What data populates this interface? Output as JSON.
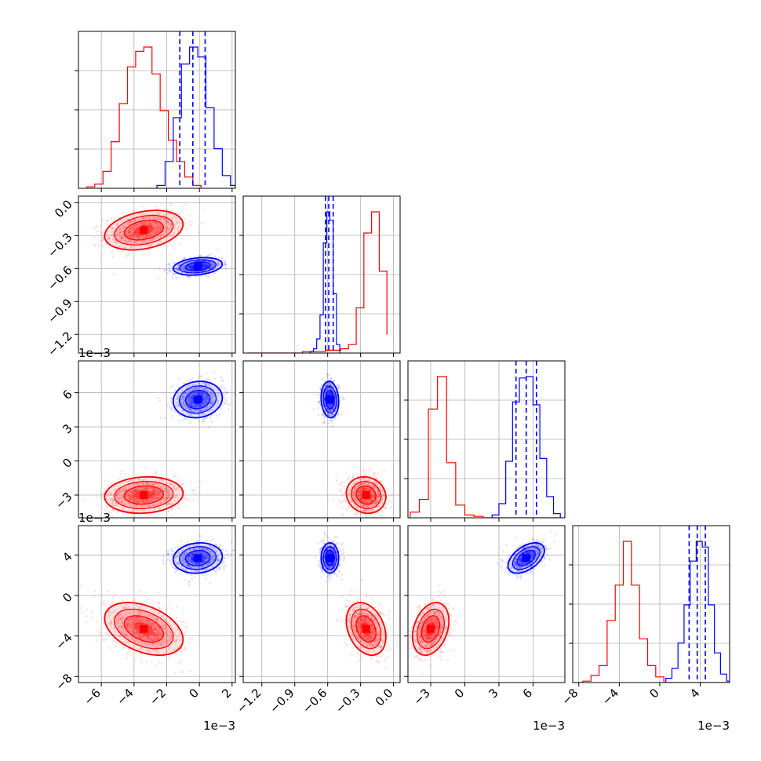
{
  "chart_data": {
    "type": "corner",
    "colors": {
      "series_a": "#ff0000",
      "series_b": "#0000ff"
    },
    "grid": true,
    "parameters": [
      {
        "index": 0,
        "range": [
          -7.4,
          2.2
        ],
        "scale_factor": "1e-3",
        "ticks": [
          -6,
          -4,
          -2,
          0,
          2
        ],
        "tick_labels": [
          "−6",
          "−4",
          "−2",
          "0",
          "2"
        ]
      },
      {
        "index": 1,
        "range": [
          -1.37,
          0.06
        ],
        "scale_factor": "1e-3",
        "ticks": [
          -1.2,
          -0.9,
          -0.6,
          -0.3,
          0.0
        ],
        "tick_labels": [
          "−1.2",
          "−0.9",
          "−0.6",
          "−0.3",
          "0.0"
        ]
      },
      {
        "index": 2,
        "range": [
          -5.0,
          8.8
        ],
        "scale_factor": "1e-3",
        "ticks": [
          -3,
          0,
          3,
          6
        ],
        "tick_labels": [
          "−3",
          "0",
          "3",
          "6"
        ]
      },
      {
        "index": 3,
        "range": [
          -8.6,
          6.9
        ],
        "scale_factor": "1e-3",
        "ticks": [
          -8,
          -4,
          0,
          4
        ],
        "tick_labels": [
          "−8",
          "−4",
          "0",
          "4"
        ]
      }
    ],
    "offset_labels": [
      "1e−3",
      "1e−3",
      "1e−3",
      "1e−3",
      "1e−3",
      "1e−3"
    ],
    "series": [
      {
        "color": "#ff0000",
        "means": [
          -3.4,
          -0.25,
          -3.0,
          -3.3
        ],
        "sigmas": [
          1.2,
          0.09,
          0.8,
          1.3
        ],
        "correlations": {
          "1_0": 0.3,
          "2_0": 0.1,
          "2_1": -0.1,
          "3_0": -0.4,
          "3_1": -0.3,
          "3_2": 0.3
        },
        "histograms": [
          {
            "edges": [
              -6.9,
              -6.4,
              -5.9,
              -5.4,
              -4.9,
              -4.4,
              -3.9,
              -3.4,
              -2.9,
              -2.4,
              -1.9,
              -1.4,
              -0.9,
              -0.4,
              0.1
            ],
            "counts": [
              0.01,
              0.03,
              0.12,
              0.33,
              0.6,
              0.86,
              0.97,
              1.0,
              0.81,
              0.55,
              0.34,
              0.19,
              0.08,
              0.02
            ]
          },
          {
            "edges": [
              -1.32,
              -1.25,
              -1.18,
              -1.11,
              -1.04,
              -0.97,
              -0.9,
              -0.83,
              -0.76,
              -0.69,
              -0.62,
              -0.55,
              -0.48,
              -0.41,
              -0.34,
              -0.27,
              -0.2,
              -0.13,
              -0.06
            ],
            "counts": [
              0,
              0,
              0,
              0,
              0,
              0,
              0,
              0.01,
              0.01,
              0.01,
              0.02,
              0.02,
              0.03,
              0.06,
              0.32,
              0.85,
              1.0,
              0.58,
              0.13
            ]
          },
          {
            "edges": [
              -4.8,
              -4.0,
              -3.2,
              -2.4,
              -1.6,
              -0.8,
              0.0,
              0.8,
              1.6,
              2.4,
              3.2,
              4.0,
              4.8,
              5.6,
              6.4,
              7.2,
              8.0,
              8.8
            ],
            "counts": [
              0.04,
              0.13,
              0.77,
              1.0,
              0.39,
              0.09,
              0.02,
              0.01,
              0,
              0,
              0,
              0,
              0,
              0,
              0,
              0,
              0
            ]
          },
          {
            "edges": [
              -8.4,
              -7.6,
              -6.8,
              -6.0,
              -5.2,
              -4.4,
              -3.6,
              -2.8,
              -2.0,
              -1.2,
              -0.4,
              0.4,
              1.2,
              2.0,
              2.8,
              3.6,
              4.4,
              5.2,
              6.0,
              6.8
            ],
            "counts": [
              0,
              0.01,
              0.05,
              0.12,
              0.44,
              0.69,
              1.0,
              0.69,
              0.31,
              0.12,
              0.04,
              0,
              0,
              0,
              0,
              0,
              0,
              0,
              0
            ]
          }
        ]
      },
      {
        "color": "#0000ff",
        "means": [
          -0.1,
          -0.58,
          5.4,
          3.7
        ],
        "sigmas": [
          0.75,
          0.04,
          0.8,
          0.75
        ],
        "correlations": {
          "1_0": 0.25,
          "2_0": 0.1,
          "2_1": -0.1,
          "3_0": 0.1,
          "3_1": 0.0,
          "3_2": 0.5
        },
        "histograms": [
          {
            "edges": [
              -2.6,
              -2.1,
              -1.6,
              -1.1,
              -0.6,
              -0.1,
              0.4,
              0.9,
              1.4,
              1.9,
              2.4
            ],
            "counts": [
              0.02,
              0.19,
              0.5,
              0.88,
              1.0,
              0.93,
              0.57,
              0.28,
              0.09,
              0.02
            ]
          },
          {
            "edges": [
              -0.76,
              -0.73,
              -0.7,
              -0.67,
              -0.64,
              -0.61,
              -0.58,
              -0.55,
              -0.52,
              -0.49
            ],
            "counts": [
              0.01,
              0.03,
              0.1,
              0.27,
              0.78,
              1.0,
              0.94,
              0.42,
              0.06
            ]
          },
          {
            "edges": [
              2.4,
              3.0,
              3.6,
              4.2,
              4.8,
              5.4,
              6.0,
              6.6,
              7.2,
              7.8,
              8.4
            ],
            "counts": [
              0.02,
              0.1,
              0.4,
              0.82,
              0.99,
              1.0,
              0.8,
              0.42,
              0.15,
              0.03
            ]
          },
          {
            "edges": [
              0.6,
              1.2,
              1.8,
              2.4,
              3.0,
              3.6,
              4.2,
              4.8,
              5.4,
              6.0,
              6.6,
              7.2
            ],
            "counts": [
              0.03,
              0.1,
              0.28,
              0.55,
              0.86,
              1.0,
              0.96,
              0.55,
              0.21,
              0.06,
              0.01
            ]
          }
        ],
        "quantile_lines": [
          [
            -1.2,
            -0.4,
            0.35
          ],
          [
            -0.62,
            -0.59,
            -0.55
          ],
          [
            4.5,
            5.4,
            6.3
          ],
          [
            2.9,
            3.7,
            4.5
          ]
        ]
      }
    ]
  }
}
